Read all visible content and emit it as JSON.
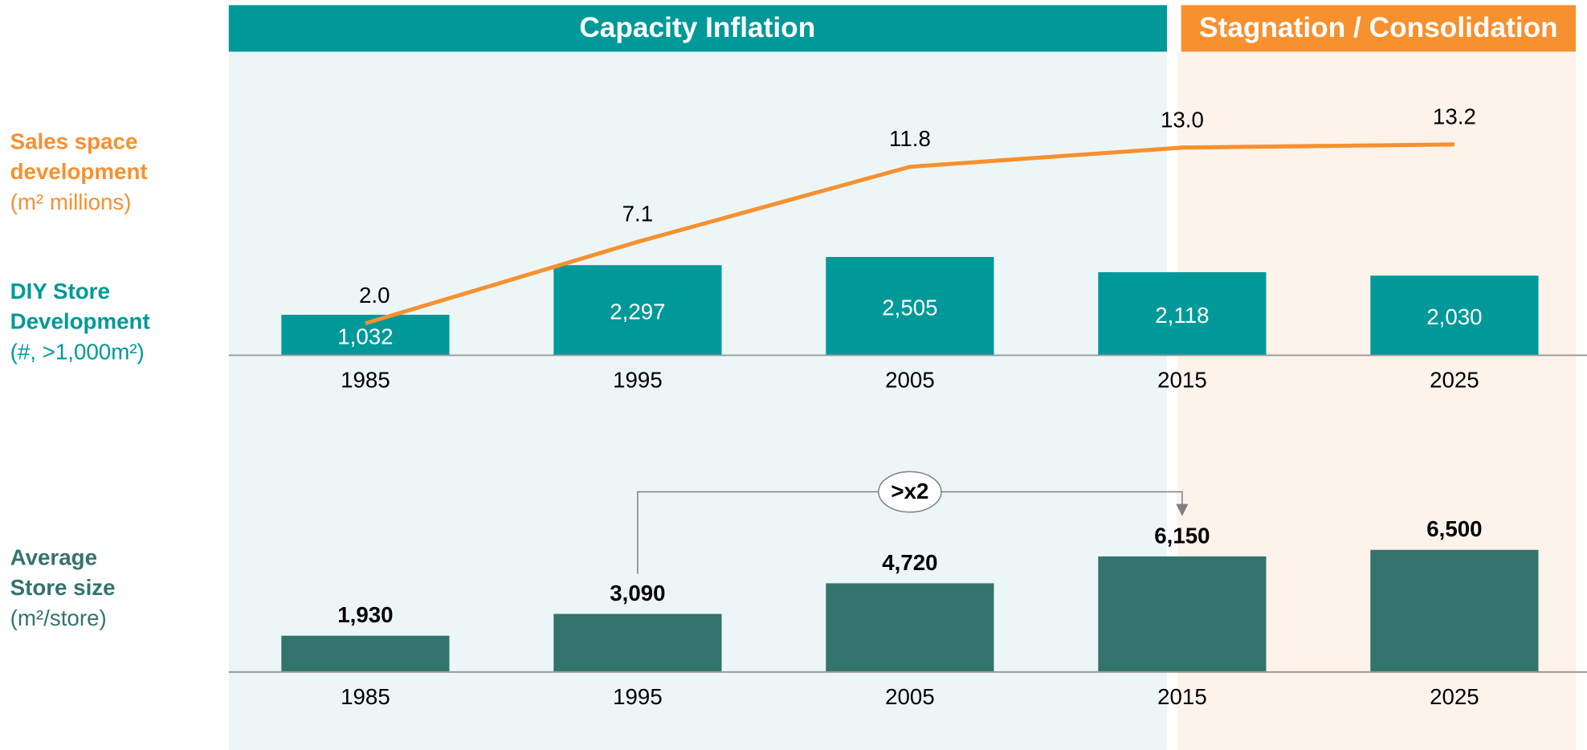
{
  "phases": [
    {
      "label": "Capacity Inflation"
    },
    {
      "label": "Stagnation / Consolidation"
    }
  ],
  "annotation": ">x2",
  "chart_data": [
    {
      "type": "line",
      "title": "Sales space development",
      "unit": "(m² millions)",
      "color": "#f7902f",
      "categories": [
        "1985",
        "1995",
        "2005",
        "2015",
        "2025"
      ],
      "values": [
        2.0,
        7.1,
        11.8,
        13.0,
        13.2
      ],
      "value_labels": [
        "2.0",
        "7.1",
        "11.8",
        "13.0",
        "13.2"
      ],
      "ylim": [
        0,
        14
      ]
    },
    {
      "type": "bar",
      "title": "DIY Store Development",
      "unit": "(#, >1,000m²)",
      "color": "#009999",
      "categories": [
        "1985",
        "1995",
        "2005",
        "2015",
        "2025"
      ],
      "values": [
        1032,
        2297,
        2505,
        2118,
        2030
      ],
      "value_labels": [
        "1,032",
        "2,297",
        "2,505",
        "2,118",
        "2,030"
      ],
      "ylim": [
        0,
        5700
      ]
    },
    {
      "type": "bar",
      "title": "Average Store size",
      "unit": "(m²/store)",
      "color": "#35736d",
      "categories": [
        "1985",
        "1995",
        "2005",
        "2015",
        "2025"
      ],
      "values": [
        1930,
        3090,
        4720,
        6150,
        6500
      ],
      "value_labels": [
        "1,930",
        "3,090",
        "4,720",
        "6,150",
        "6,500"
      ],
      "ylim": [
        0,
        7000
      ]
    }
  ]
}
